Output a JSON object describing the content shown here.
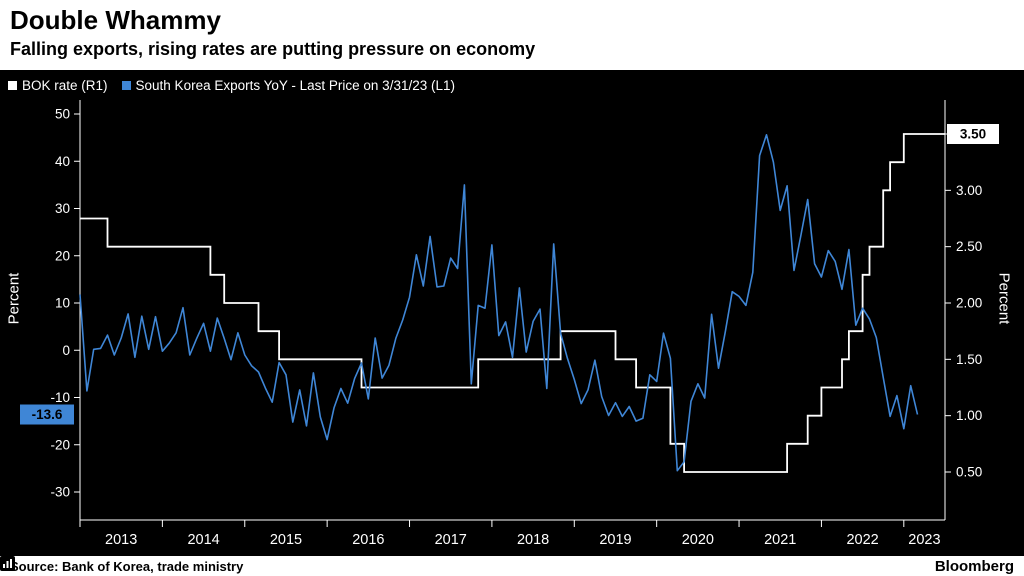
{
  "header": {
    "title": "Double Whammy",
    "subtitle": "Falling exports, rising rates are putting pressure on economy"
  },
  "legend": [
    {
      "label": "BOK rate (R1)",
      "color": "#ffffff"
    },
    {
      "label": "South Korea Exports YoY - Last Price on 3/31/23 (L1)",
      "color": "#3f86d6"
    }
  ],
  "footer": {
    "source": "Source: Bank of Korea, trade ministry",
    "brand": "Bloomberg"
  },
  "chart_data": {
    "type": "line",
    "title": "Double Whammy",
    "x_start": "2013-01",
    "x_end": "2023-03",
    "x_tick_years": [
      2013,
      2014,
      2015,
      2016,
      2017,
      2018,
      2019,
      2020,
      2021,
      2022,
      2023
    ],
    "left_axis": {
      "label": "Percent",
      "ticks": [
        50,
        40,
        30,
        20,
        10,
        0,
        -10,
        -20,
        -30
      ],
      "min": -30,
      "max": 50
    },
    "right_axis": {
      "label": "Percent",
      "ticks": [
        3.5,
        3.0,
        2.5,
        2.0,
        1.5,
        1.0,
        0.5
      ],
      "min": 0.5,
      "max": 3.5
    },
    "series": [
      {
        "name": "BOK rate (R1)",
        "axis": "right",
        "color": "#ffffff",
        "line_style": "step",
        "values": [
          2.75,
          2.75,
          2.75,
          2.75,
          2.5,
          2.5,
          2.5,
          2.5,
          2.5,
          2.5,
          2.5,
          2.5,
          2.5,
          2.5,
          2.5,
          2.5,
          2.5,
          2.5,
          2.5,
          2.25,
          2.25,
          2.0,
          2.0,
          2.0,
          2.0,
          2.0,
          1.75,
          1.75,
          1.75,
          1.5,
          1.5,
          1.5,
          1.5,
          1.5,
          1.5,
          1.5,
          1.5,
          1.5,
          1.5,
          1.5,
          1.5,
          1.25,
          1.25,
          1.25,
          1.25,
          1.25,
          1.25,
          1.25,
          1.25,
          1.25,
          1.25,
          1.25,
          1.25,
          1.25,
          1.25,
          1.25,
          1.25,
          1.25,
          1.5,
          1.5,
          1.5,
          1.5,
          1.5,
          1.5,
          1.5,
          1.5,
          1.5,
          1.5,
          1.5,
          1.5,
          1.75,
          1.75,
          1.75,
          1.75,
          1.75,
          1.75,
          1.75,
          1.75,
          1.5,
          1.5,
          1.5,
          1.25,
          1.25,
          1.25,
          1.25,
          1.25,
          0.75,
          0.75,
          0.5,
          0.5,
          0.5,
          0.5,
          0.5,
          0.5,
          0.5,
          0.5,
          0.5,
          0.5,
          0.5,
          0.5,
          0.5,
          0.5,
          0.5,
          0.75,
          0.75,
          0.75,
          1.0,
          1.0,
          1.25,
          1.25,
          1.25,
          1.5,
          1.75,
          1.75,
          2.25,
          2.5,
          2.5,
          3.0,
          3.25,
          3.25,
          3.5,
          3.5,
          3.5
        ]
      },
      {
        "name": "South Korea Exports YoY",
        "axis": "left",
        "color": "#3f86d6",
        "line_style": "line",
        "values": [
          11.8,
          -8.6,
          0.2,
          0.4,
          3.2,
          -1.0,
          2.6,
          7.7,
          -1.5,
          7.2,
          0.2,
          7.1,
          -0.2,
          1.5,
          3.7,
          9.0,
          -1.0,
          2.5,
          5.7,
          -0.2,
          6.8,
          2.5,
          -2.0,
          3.7,
          -1.0,
          -3.3,
          -4.6,
          -8.0,
          -11.0,
          -2.6,
          -5.2,
          -15.2,
          -8.4,
          -16.0,
          -4.8,
          -14.1,
          -18.9,
          -12.2,
          -8.1,
          -11.2,
          -6.0,
          -2.7,
          -10.3,
          2.6,
          -5.9,
          -3.2,
          2.5,
          6.4,
          11.2,
          20.2,
          13.6,
          24.1,
          13.4,
          13.6,
          19.5,
          17.3,
          35.0,
          -7.1,
          9.5,
          8.9,
          22.3,
          3.1,
          6.0,
          -1.5,
          13.2,
          -0.4,
          6.1,
          8.7,
          -8.1,
          22.5,
          3.6,
          -1.7,
          -6.2,
          -11.3,
          -8.4,
          -2.1,
          -9.8,
          -13.8,
          -11.1,
          -14.0,
          -11.9,
          -15.0,
          -14.4,
          -5.2,
          -6.6,
          3.6,
          -1.7,
          -25.5,
          -23.6,
          -10.8,
          -7.1,
          -10.1,
          7.6,
          -3.8,
          3.9,
          12.4,
          11.4,
          9.5,
          16.5,
          41.2,
          45.6,
          39.8,
          29.6,
          34.8,
          16.9,
          24.2,
          31.9,
          18.3,
          15.5,
          21.1,
          18.8,
          12.9,
          21.3,
          5.3,
          8.9,
          6.6,
          2.7,
          -5.7,
          -14.0,
          -9.6,
          -16.6,
          -7.5,
          -13.6
        ]
      }
    ],
    "annotations": {
      "exports_last_label": "-13.6",
      "bok_last_label": "3.50"
    }
  }
}
